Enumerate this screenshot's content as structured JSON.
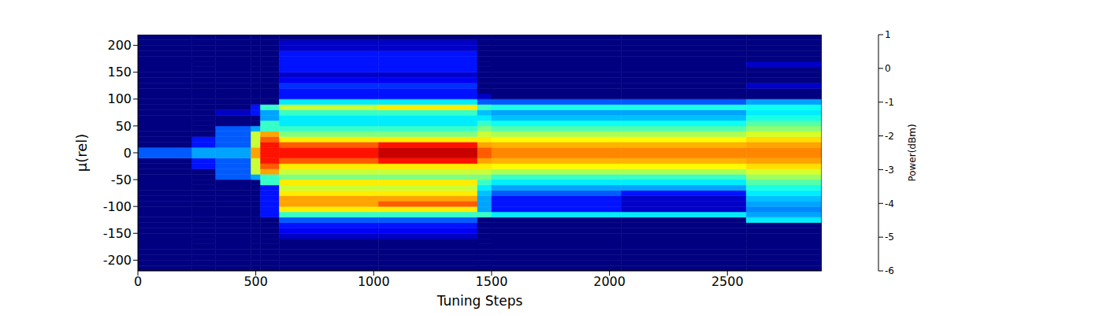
{
  "chart_data": {
    "type": "heatmap",
    "xlabel": "Tuning Steps",
    "ylabel": "μ(rel)",
    "xlim": [
      0,
      2900
    ],
    "xticks": [
      0,
      500,
      1000,
      1500,
      2000,
      2500
    ],
    "ylim": [
      -220,
      220
    ],
    "yticks": [
      -200,
      -150,
      -100,
      -50,
      0,
      50,
      100,
      150,
      200
    ],
    "x_edges": [
      0,
      230,
      330,
      480,
      520,
      600,
      1020,
      1440,
      1500,
      2050,
      2580,
      2900
    ],
    "y_edges": [
      -220,
      -210,
      -200,
      -190,
      -180,
      -170,
      -160,
      -150,
      -140,
      -130,
      -120,
      -110,
      -100,
      -90,
      -80,
      -70,
      -60,
      -50,
      -40,
      -30,
      -20,
      -10,
      0,
      10,
      20,
      30,
      40,
      50,
      60,
      70,
      80,
      90,
      100,
      110,
      120,
      130,
      140,
      150,
      160,
      170,
      180,
      190,
      200,
      210,
      220
    ],
    "cells": [
      [
        -6,
        -6,
        -6,
        -6,
        -6,
        -6,
        -6,
        -6,
        -6,
        -6,
        -6,
        -6,
        -6,
        -6,
        -6,
        -6,
        -6,
        -6,
        -6,
        -6,
        -6,
        -4.5,
        -4.5,
        -6,
        -6,
        -6,
        -6,
        -6,
        -6,
        -6,
        -6,
        -6,
        -6,
        -6,
        -6,
        -6,
        -6,
        -6,
        -6,
        -6,
        -6,
        -6,
        -6,
        -6
      ],
      [
        -6,
        -6,
        -6,
        -6,
        -6,
        -6,
        -6,
        -6,
        -6,
        -6,
        -6,
        -6,
        -6,
        -6,
        -6,
        -6,
        -6,
        -6,
        -6,
        -5,
        -5,
        -4,
        -4,
        -5,
        -5,
        -6,
        -6,
        -6,
        -6,
        -6,
        -6,
        -6,
        -6,
        -6,
        -6,
        -6,
        -6,
        -6,
        -6,
        -6,
        -6,
        -6,
        -6,
        -6
      ],
      [
        -6,
        -6,
        -6,
        -6,
        -6,
        -6,
        -6,
        -6,
        -6,
        -6,
        -6,
        -6,
        -6,
        -6,
        -6,
        -6,
        -6,
        -4.5,
        -4.5,
        -4.5,
        -4.5,
        -4,
        -4,
        -4.5,
        -4.5,
        -4.5,
        -4.5,
        -6,
        -6,
        -5.5,
        -6,
        -6,
        -6,
        -6,
        -6,
        -6,
        -6,
        -6,
        -6,
        -6,
        -6,
        -6,
        -6,
        -6
      ],
      [
        -6,
        -6,
        -6,
        -6,
        -6,
        -6,
        -6,
        -6,
        -6,
        -6,
        -6,
        -6,
        -6,
        -6,
        -6,
        -6,
        -6,
        -4,
        -2,
        -2,
        -2,
        -1,
        -1,
        -2,
        -2,
        -2,
        -4,
        -6,
        -6,
        -5,
        -5,
        -6,
        -6,
        -6,
        -6,
        -6,
        -6,
        -6,
        -6,
        -6,
        -6,
        -6,
        -6,
        -6
      ],
      [
        -6,
        -6,
        -6,
        -6,
        -6,
        -6,
        -6,
        -6,
        -6,
        -6,
        -5,
        -5,
        -5,
        -5,
        -5,
        -5,
        -3,
        -3,
        -1,
        -0.5,
        0,
        0,
        0,
        0,
        -0.5,
        -1,
        -3,
        -3,
        -4,
        -4,
        -3,
        -6,
        -6,
        -6,
        -6,
        -6,
        -6,
        -6,
        -6,
        -6,
        -6,
        -6,
        -6,
        -6
      ],
      [
        -6,
        -6,
        -6,
        -6,
        -6,
        -6,
        -5.5,
        -5.2,
        -5,
        -4.5,
        -3,
        -1.5,
        -1,
        -1,
        -1.5,
        -2,
        -1.5,
        -2.5,
        -2,
        -1.5,
        -0.5,
        0,
        0,
        -0.5,
        -1.5,
        -2.5,
        -3,
        -3.5,
        -3.5,
        -3,
        -2,
        -3.5,
        -5,
        -5,
        -4.8,
        -5.2,
        -5.5,
        -5,
        -5,
        -5,
        -5,
        -5.5,
        -5.5,
        -6
      ],
      [
        -6,
        -6,
        -6,
        -6,
        -6,
        -6,
        -5.5,
        -5.2,
        -5,
        -4.5,
        -3,
        -1.5,
        -0.5,
        -1,
        -1.5,
        -2,
        -1.5,
        -2.5,
        -2,
        -1.5,
        0,
        0.5,
        0.5,
        0,
        -1.5,
        -2.5,
        -3,
        -3.5,
        -3.5,
        -3,
        -1.5,
        -3.5,
        -5,
        -5,
        -4.8,
        -5.2,
        -5.5,
        -5,
        -5,
        -5,
        -5,
        -5.5,
        -5.5,
        -6
      ],
      [
        -6,
        -6,
        -6,
        -6,
        -6,
        -6,
        -6,
        -6,
        -6,
        -6,
        -3,
        -4,
        -4,
        -4,
        -3.8,
        -3.5,
        -3,
        -2.5,
        -2,
        -1.5,
        -1,
        -0.5,
        -0.5,
        -1,
        -1.5,
        -2,
        -2.5,
        -3,
        -3.5,
        -3.8,
        -3,
        -4.5,
        -5.5,
        -6,
        -6,
        -6,
        -6,
        -6,
        -6,
        -6,
        -6,
        -6,
        -6,
        -6
      ],
      [
        -6,
        -6,
        -6,
        -6,
        -6,
        -6,
        -6,
        -6,
        -6,
        -6,
        -3.5,
        -5,
        -5,
        -5,
        -4.5,
        -4,
        -3.5,
        -3,
        -2.2,
        -1.6,
        -1.1,
        -0.8,
        -0.8,
        -1.1,
        -1.6,
        -2.2,
        -2.8,
        -3.3,
        -3.8,
        -4,
        -3.2,
        -4.5,
        -6,
        -6,
        -6,
        -6,
        -6,
        -6,
        -6,
        -6,
        -6,
        -6,
        -6,
        -6
      ],
      [
        -6,
        -6,
        -6,
        -6,
        -6,
        -6,
        -6,
        -6,
        -6,
        -6,
        -3.5,
        -5.5,
        -5.5,
        -5.5,
        -5,
        -4,
        -3.5,
        -3,
        -2.2,
        -1.6,
        -1.1,
        -0.8,
        -0.8,
        -1.1,
        -1.6,
        -2.2,
        -2.8,
        -3.3,
        -3.8,
        -4,
        -3.2,
        -4.5,
        -6,
        -6,
        -6,
        -6,
        -6,
        -6,
        -6,
        -6,
        -6,
        -6,
        -6,
        -6
      ],
      [
        -6,
        -6,
        -6,
        -6,
        -6,
        -6,
        -6,
        -6,
        -6,
        -3.5,
        -4,
        -4.2,
        -4,
        -3.8,
        -3.5,
        -3.2,
        -2.8,
        -2.3,
        -1.9,
        -1.4,
        -1,
        -0.8,
        -0.8,
        -1,
        -1.4,
        -1.9,
        -2.4,
        -2.8,
        -3.2,
        -3.5,
        -3.3,
        -4,
        -6,
        -6,
        -5.5,
        -6,
        -6,
        -6,
        -5.5,
        -6,
        -6,
        -6,
        -6,
        -6
      ]
    ],
    "colorbar": {
      "label": "Power(dBm)",
      "range": [
        -6,
        1
      ],
      "ticks": [
        -6,
        -5,
        -4,
        -3,
        -2,
        -1,
        0,
        1
      ]
    }
  }
}
